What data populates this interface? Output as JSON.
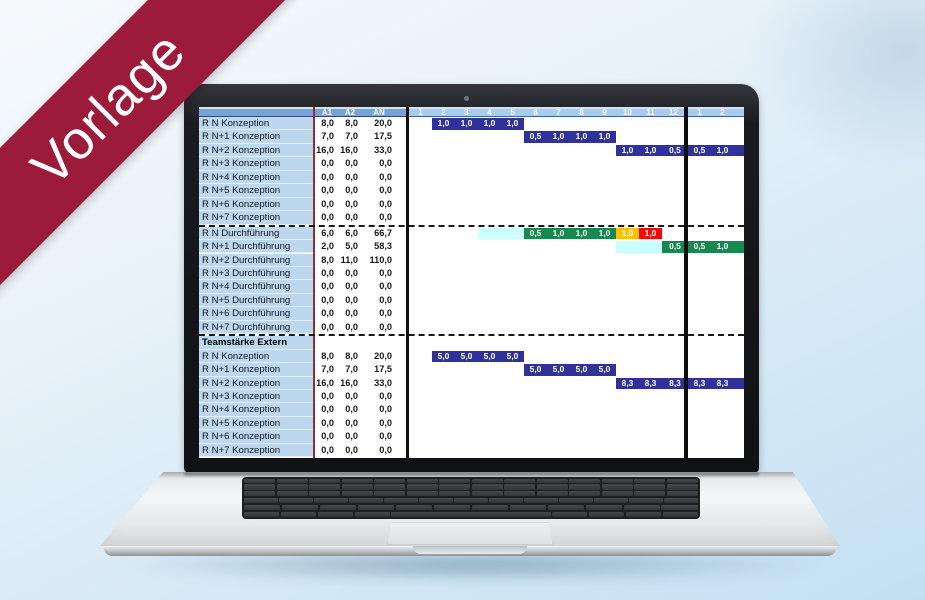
{
  "banner": {
    "label": "Vorlage",
    "bg_color": "#9c1b3a",
    "text_color": "#ffffff"
  },
  "screen": {
    "value_column_headers": [
      "A1",
      "A2",
      "AN"
    ],
    "months_year1": [
      "1",
      "2",
      "3",
      "4",
      "5",
      "6",
      "7",
      "8",
      "9",
      "10",
      "11",
      "12"
    ],
    "months_year2": [
      "1",
      "2"
    ],
    "colors": {
      "header_left_bg": "#76a2d6",
      "header_right_bg": "#a8cbee",
      "label_bg": "#bdd7ee",
      "bar_blue": "#31319c",
      "bar_green": "#17894e",
      "bar_yellow": "#ffc000",
      "bar_red": "#fe0000",
      "bar_cyan": "#ccffff",
      "red_separator": "#8d3130"
    },
    "sections": [
      {
        "title": "",
        "rows": [
          {
            "label": "R N Konzeption",
            "values": [
              "8,0",
              "8,0",
              "20,0"
            ],
            "bars": [
              {
                "col": 2,
                "color": "blue",
                "cells": [
                  "1,0",
                  "1,0",
                  "1,0",
                  "1,0"
                ]
              }
            ]
          },
          {
            "label": "R N+1 Konzeption",
            "values": [
              "7,0",
              "7,0",
              "17,5"
            ],
            "bars": [
              {
                "col": 6,
                "color": "blue",
                "cells": [
                  "0,5",
                  "1,0",
                  "1,0",
                  "1,0"
                ]
              }
            ]
          },
          {
            "label": "R N+2 Konzeption",
            "values": [
              "16,0",
              "16,0",
              "33,0"
            ],
            "bars": [
              {
                "col": 10,
                "color": "blue",
                "cells": [
                  "1,0",
                  "1,0",
                  "0,5",
                  "0,5",
                  "1,0"
                ],
                "to_edge": true
              }
            ]
          },
          {
            "label": "R N+3 Konzeption",
            "values": [
              "0,0",
              "0,0",
              "0,0"
            ],
            "bars": []
          },
          {
            "label": "R N+4 Konzeption",
            "values": [
              "0,0",
              "0,0",
              "0,0"
            ],
            "bars": []
          },
          {
            "label": "R N+5 Konzeption",
            "values": [
              "0,0",
              "0,0",
              "0,0"
            ],
            "bars": []
          },
          {
            "label": "R N+6 Konzeption",
            "values": [
              "0,0",
              "0,0",
              "0,0"
            ],
            "bars": []
          },
          {
            "label": "R N+7 Konzeption",
            "values": [
              "0,0",
              "0,0",
              "0,0"
            ],
            "bars": []
          }
        ]
      },
      {
        "title": "",
        "rows": [
          {
            "label": "R N Durchführung",
            "values": [
              "6,0",
              "6,0",
              "66,7"
            ],
            "bars": [
              {
                "col": 4,
                "color": "cyan",
                "span": 2
              },
              {
                "col": 6,
                "color": "green",
                "cells": [
                  "0,5",
                  "1,0",
                  "1,0",
                  "1,0"
                ]
              },
              {
                "col": 10,
                "color": "yellow",
                "cells": [
                  "1,0"
                ]
              },
              {
                "col": 11,
                "color": "red",
                "cells": [
                  "1,0"
                ]
              }
            ]
          },
          {
            "label": "R N+1 Durchführung",
            "values": [
              "2,0",
              "5,0",
              "58,3"
            ],
            "bars": [
              {
                "col": 10,
                "color": "cyan",
                "span": 2
              },
              {
                "col": 12,
                "color": "green",
                "cells": [
                  "0,5",
                  "0,5",
                  "1,0"
                ],
                "to_edge": true
              }
            ]
          },
          {
            "label": "R N+2 Durchführung",
            "values": [
              "8,0",
              "11,0",
              "110,0"
            ],
            "bars": []
          },
          {
            "label": "R N+3 Durchführung",
            "values": [
              "0,0",
              "0,0",
              "0,0"
            ],
            "bars": []
          },
          {
            "label": "R N+4 Durchführung",
            "values": [
              "0,0",
              "0,0",
              "0,0"
            ],
            "bars": []
          },
          {
            "label": "R N+5 Durchführung",
            "values": [
              "0,0",
              "0,0",
              "0,0"
            ],
            "bars": []
          },
          {
            "label": "R N+6 Durchführung",
            "values": [
              "0,0",
              "0,0",
              "0,0"
            ],
            "bars": []
          },
          {
            "label": "R N+7 Durchführung",
            "values": [
              "0,0",
              "0,0",
              "0,0"
            ],
            "bars": []
          }
        ]
      },
      {
        "title": "Teamstärke Extern",
        "rows": [
          {
            "label": "R N Konzeption",
            "values": [
              "8,0",
              "8,0",
              "20,0"
            ],
            "bars": [
              {
                "col": 2,
                "color": "blue",
                "cells": [
                  "5,0",
                  "5,0",
                  "5,0",
                  "5,0"
                ]
              }
            ]
          },
          {
            "label": "R N+1 Konzeption",
            "values": [
              "7,0",
              "7,0",
              "17,5"
            ],
            "bars": [
              {
                "col": 6,
                "color": "blue",
                "cells": [
                  "5,0",
                  "5,0",
                  "5,0",
                  "5,0"
                ]
              }
            ]
          },
          {
            "label": "R N+2 Konzeption",
            "values": [
              "16,0",
              "16,0",
              "33,0"
            ],
            "bars": [
              {
                "col": 10,
                "color": "blue",
                "cells": [
                  "8,3",
                  "8,3",
                  "8,3",
                  "8,3",
                  "8,3"
                ],
                "to_edge": true
              }
            ]
          },
          {
            "label": "R N+3 Konzeption",
            "values": [
              "0,0",
              "0,0",
              "0,0"
            ],
            "bars": []
          },
          {
            "label": "R N+4 Konzeption",
            "values": [
              "0,0",
              "0,0",
              "0,0"
            ],
            "bars": []
          },
          {
            "label": "R N+5 Konzeption",
            "values": [
              "0,0",
              "0,0",
              "0,0"
            ],
            "bars": []
          },
          {
            "label": "R N+6 Konzeption",
            "values": [
              "0,0",
              "0,0",
              "0,0"
            ],
            "bars": []
          },
          {
            "label": "R N+7 Konzeption",
            "values": [
              "0,0",
              "0,0",
              "0,0"
            ],
            "bars": []
          }
        ]
      }
    ]
  }
}
